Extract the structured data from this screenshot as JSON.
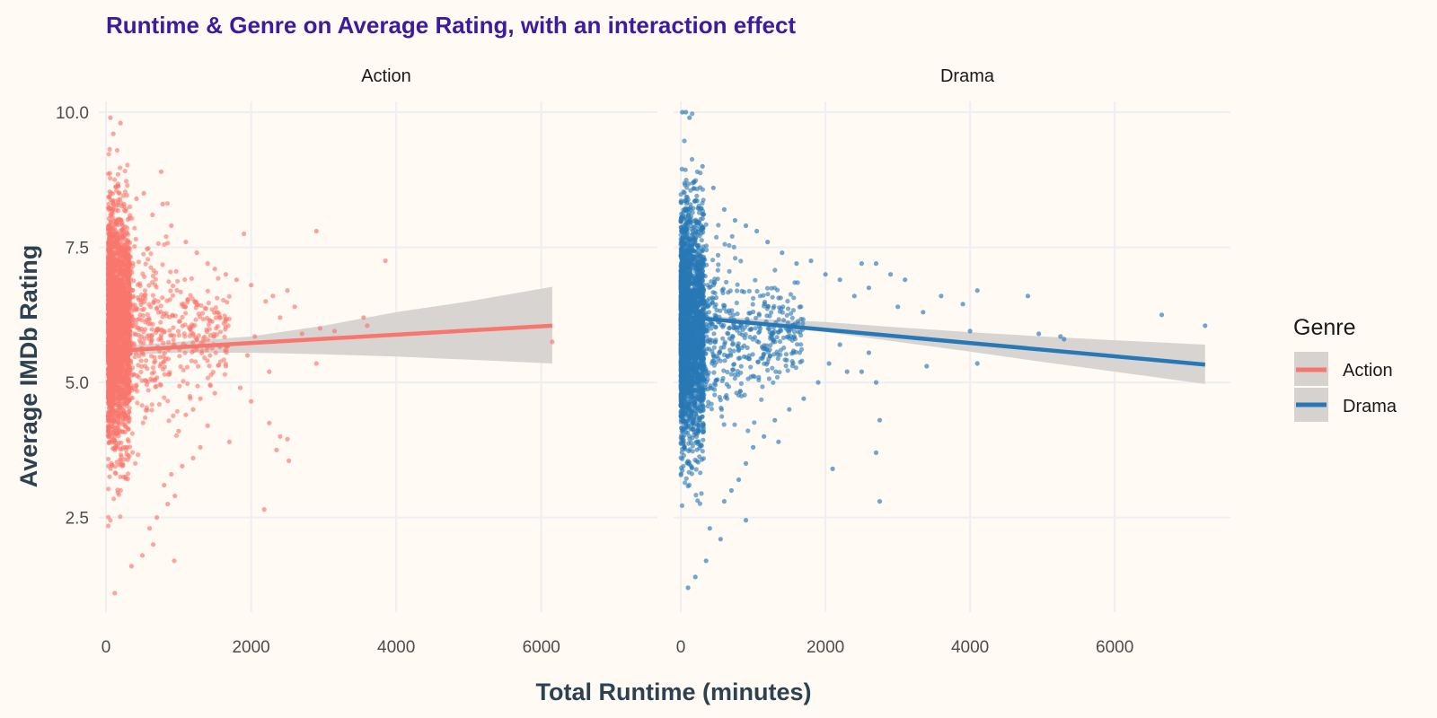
{
  "chart_data": {
    "type": "scatter",
    "title": "Runtime & Genre on Average Rating, with an interaction effect",
    "xlabel": "Total Runtime (minutes)",
    "ylabel": "Average IMDb Rating",
    "x_ticks": [
      "0",
      "2000",
      "4000",
      "6000"
    ],
    "y_ticks": [
      "2.5",
      "5.0",
      "7.5",
      "10.0"
    ],
    "xlim": [
      -100,
      7600
    ],
    "ylim": [
      0.75,
      10.2
    ],
    "grid": true,
    "legend": {
      "title": "Genre",
      "position": "right",
      "items": [
        {
          "label": "Action",
          "color": "#F8766D"
        },
        {
          "label": "Drama",
          "color": "#2878B5"
        }
      ]
    },
    "facets": [
      {
        "name": "Action",
        "color": "#F8766D",
        "fit_line": {
          "x": [
            60,
            6150
          ],
          "y": [
            5.58,
            6.05
          ]
        },
        "confidence_band": {
          "x": [
            60,
            1000,
            2000,
            3000,
            4000,
            5000,
            6150
          ],
          "lower": [
            5.5,
            5.55,
            5.55,
            5.52,
            5.48,
            5.42,
            5.35
          ],
          "upper": [
            5.66,
            5.75,
            5.85,
            6.05,
            6.3,
            6.5,
            6.77
          ]
        },
        "dense_range": {
          "x": [
            30,
            330
          ],
          "y": [
            1.1,
            9.5
          ]
        },
        "outliers": [
          {
            "x": 60,
            "y": 9.9
          },
          {
            "x": 200,
            "y": 9.8
          },
          {
            "x": 100,
            "y": 9.6
          },
          {
            "x": 760,
            "y": 8.9
          },
          {
            "x": 520,
            "y": 8.5
          },
          {
            "x": 420,
            "y": 8.4
          },
          {
            "x": 780,
            "y": 8.3
          },
          {
            "x": 640,
            "y": 8.1
          },
          {
            "x": 900,
            "y": 7.9
          },
          {
            "x": 1100,
            "y": 7.6
          },
          {
            "x": 1250,
            "y": 7.4
          },
          {
            "x": 1400,
            "y": 7.2
          },
          {
            "x": 1500,
            "y": 7.1
          },
          {
            "x": 1900,
            "y": 7.75
          },
          {
            "x": 2900,
            "y": 7.8
          },
          {
            "x": 3850,
            "y": 7.25
          },
          {
            "x": 1650,
            "y": 7.0
          },
          {
            "x": 1800,
            "y": 6.9
          },
          {
            "x": 2000,
            "y": 6.8
          },
          {
            "x": 2300,
            "y": 6.6
          },
          {
            "x": 2500,
            "y": 6.7
          },
          {
            "x": 2600,
            "y": 6.4
          },
          {
            "x": 2200,
            "y": 6.5
          },
          {
            "x": 2400,
            "y": 6.2
          },
          {
            "x": 2700,
            "y": 5.9
          },
          {
            "x": 2950,
            "y": 6.0
          },
          {
            "x": 3150,
            "y": 5.95
          },
          {
            "x": 3550,
            "y": 6.2
          },
          {
            "x": 3600,
            "y": 6.05
          },
          {
            "x": 2050,
            "y": 5.85
          },
          {
            "x": 1950,
            "y": 5.5
          },
          {
            "x": 2250,
            "y": 5.2
          },
          {
            "x": 2900,
            "y": 5.35
          },
          {
            "x": 1650,
            "y": 5.3
          },
          {
            "x": 1850,
            "y": 4.9
          },
          {
            "x": 2000,
            "y": 4.65
          },
          {
            "x": 1500,
            "y": 4.8
          },
          {
            "x": 1300,
            "y": 4.7
          },
          {
            "x": 1200,
            "y": 4.5
          },
          {
            "x": 1100,
            "y": 4.4
          },
          {
            "x": 1400,
            "y": 4.2
          },
          {
            "x": 1000,
            "y": 4.1
          },
          {
            "x": 1700,
            "y": 3.9
          },
          {
            "x": 1300,
            "y": 3.8
          },
          {
            "x": 1200,
            "y": 3.6
          },
          {
            "x": 2250,
            "y": 4.25
          },
          {
            "x": 2400,
            "y": 4.0
          },
          {
            "x": 2500,
            "y": 3.95
          },
          {
            "x": 2350,
            "y": 3.75
          },
          {
            "x": 2520,
            "y": 3.55
          },
          {
            "x": 1050,
            "y": 3.45
          },
          {
            "x": 900,
            "y": 3.3
          },
          {
            "x": 800,
            "y": 3.1
          },
          {
            "x": 950,
            "y": 2.9
          },
          {
            "x": 850,
            "y": 2.75
          },
          {
            "x": 2180,
            "y": 2.65
          },
          {
            "x": 940,
            "y": 1.7
          },
          {
            "x": 6150,
            "y": 5.75
          },
          {
            "x": 650,
            "y": 2.0
          },
          {
            "x": 500,
            "y": 1.8
          },
          {
            "x": 350,
            "y": 1.6
          },
          {
            "x": 120,
            "y": 1.1
          },
          {
            "x": 600,
            "y": 2.3
          },
          {
            "x": 700,
            "y": 2.5
          }
        ]
      },
      {
        "name": "Drama",
        "color": "#2878B5",
        "fit_line": {
          "x": [
            0,
            7250
          ],
          "y": [
            6.22,
            5.33
          ]
        },
        "confidence_band": {
          "x": [
            0,
            1000,
            2000,
            3000,
            4000,
            5000,
            6000,
            7250
          ],
          "lower": [
            6.18,
            6.08,
            5.93,
            5.75,
            5.57,
            5.38,
            5.2,
            4.97
          ],
          "upper": [
            6.26,
            6.18,
            6.12,
            6.02,
            5.93,
            5.85,
            5.78,
            5.7
          ]
        },
        "dense_range": {
          "x": [
            0,
            320
          ],
          "y": [
            1.0,
            10.0
          ]
        },
        "outliers": [
          {
            "x": 20,
            "y": 10.0
          },
          {
            "x": 70,
            "y": 10.0
          },
          {
            "x": 120,
            "y": 9.9
          },
          {
            "x": 300,
            "y": 9.0
          },
          {
            "x": 450,
            "y": 8.6
          },
          {
            "x": 600,
            "y": 8.2
          },
          {
            "x": 750,
            "y": 8.0
          },
          {
            "x": 900,
            "y": 7.9
          },
          {
            "x": 1050,
            "y": 7.8
          },
          {
            "x": 1200,
            "y": 7.6
          },
          {
            "x": 1400,
            "y": 7.4
          },
          {
            "x": 1600,
            "y": 7.2
          },
          {
            "x": 1800,
            "y": 7.25
          },
          {
            "x": 2500,
            "y": 7.2
          },
          {
            "x": 2700,
            "y": 7.2
          },
          {
            "x": 2000,
            "y": 7.0
          },
          {
            "x": 2200,
            "y": 6.9
          },
          {
            "x": 2900,
            "y": 7.0
          },
          {
            "x": 3100,
            "y": 6.9
          },
          {
            "x": 2600,
            "y": 6.75
          },
          {
            "x": 2400,
            "y": 6.6
          },
          {
            "x": 3000,
            "y": 6.4
          },
          {
            "x": 3350,
            "y": 6.3
          },
          {
            "x": 3900,
            "y": 6.45
          },
          {
            "x": 4100,
            "y": 6.7
          },
          {
            "x": 4800,
            "y": 6.6
          },
          {
            "x": 3600,
            "y": 6.6
          },
          {
            "x": 4000,
            "y": 5.95
          },
          {
            "x": 4950,
            "y": 5.9
          },
          {
            "x": 5250,
            "y": 5.85
          },
          {
            "x": 5300,
            "y": 5.8
          },
          {
            "x": 6650,
            "y": 6.25
          },
          {
            "x": 7250,
            "y": 6.05
          },
          {
            "x": 4100,
            "y": 5.35
          },
          {
            "x": 3400,
            "y": 5.3
          },
          {
            "x": 2600,
            "y": 5.55
          },
          {
            "x": 2200,
            "y": 5.7
          },
          {
            "x": 2300,
            "y": 5.2
          },
          {
            "x": 2500,
            "y": 5.2
          },
          {
            "x": 2050,
            "y": 5.35
          },
          {
            "x": 1900,
            "y": 5.0
          },
          {
            "x": 2700,
            "y": 5.0
          },
          {
            "x": 2750,
            "y": 4.3
          },
          {
            "x": 1700,
            "y": 4.7
          },
          {
            "x": 1500,
            "y": 4.5
          },
          {
            "x": 1300,
            "y": 4.3
          },
          {
            "x": 1150,
            "y": 4.0
          },
          {
            "x": 1000,
            "y": 3.8
          },
          {
            "x": 2700,
            "y": 3.7
          },
          {
            "x": 2100,
            "y": 3.4
          },
          {
            "x": 2750,
            "y": 2.8
          },
          {
            "x": 1350,
            "y": 3.9
          },
          {
            "x": 900,
            "y": 3.5
          },
          {
            "x": 800,
            "y": 3.2
          },
          {
            "x": 700,
            "y": 3.0
          },
          {
            "x": 600,
            "y": 2.8
          },
          {
            "x": 900,
            "y": 2.45
          },
          {
            "x": 550,
            "y": 2.1
          },
          {
            "x": 350,
            "y": 1.7
          },
          {
            "x": 200,
            "y": 1.4
          },
          {
            "x": 100,
            "y": 1.2
          },
          {
            "x": 400,
            "y": 2.3
          }
        ]
      }
    ]
  }
}
